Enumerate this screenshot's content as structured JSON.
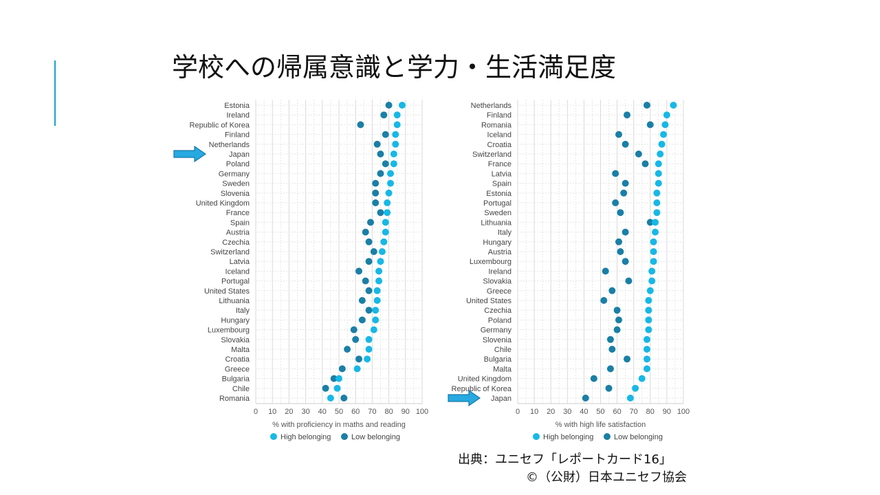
{
  "slide": {
    "title": "学校への帰属意識と学力・生活満足度",
    "source_line1": "出典：ユニセフ「レポートカード16」",
    "source_line2": "©（公財）日本ユニセフ協会",
    "accent_color": "#1aa3c9"
  },
  "chart_data": [
    {
      "type": "scatter",
      "title": "",
      "xlabel": "% with proficiency in maths and reading",
      "ylabel": "",
      "xlim": [
        0,
        100
      ],
      "xticks": [
        0,
        10,
        20,
        30,
        40,
        50,
        60,
        70,
        80,
        90,
        100
      ],
      "categories": [
        "Estonia",
        "Ireland",
        "Republic of Korea",
        "Finland",
        "Netherlands",
        "Japan",
        "Poland",
        "Germany",
        "Sweden",
        "Slovenia",
        "United Kingdom",
        "France",
        "Spain",
        "Austria",
        "Czechia",
        "Switzerland",
        "Latvia",
        "Iceland",
        "Portugal",
        "United States",
        "Lithuania",
        "Italy",
        "Hungary",
        "Luxembourg",
        "Slovakia",
        "Malta",
        "Croatia",
        "Greece",
        "Bulgaria",
        "Chile",
        "Romania"
      ],
      "highlight": "Japan",
      "series": [
        {
          "name": "High belonging",
          "color": "#17b8e6",
          "values": [
            88,
            85,
            85,
            84,
            84,
            83,
            83,
            81,
            81,
            80,
            79,
            79,
            78,
            78,
            77,
            76,
            75,
            74,
            74,
            73,
            73,
            72,
            72,
            71,
            68,
            68,
            67,
            61,
            50,
            49,
            45
          ]
        },
        {
          "name": "Low belonging",
          "color": "#1a7fa6",
          "values": [
            80,
            77,
            63,
            78,
            73,
            75,
            78,
            75,
            72,
            72,
            72,
            75,
            69,
            66,
            68,
            71,
            68,
            62,
            66,
            68,
            64,
            68,
            64,
            59,
            60,
            55,
            62,
            52,
            47,
            42,
            53
          ]
        }
      ],
      "legend": [
        "High belonging",
        "Low belonging"
      ]
    },
    {
      "type": "scatter",
      "title": "",
      "xlabel": "% with high life satisfaction",
      "ylabel": "",
      "xlim": [
        0,
        100
      ],
      "xticks": [
        0,
        10,
        20,
        30,
        40,
        50,
        60,
        70,
        80,
        90,
        100
      ],
      "categories": [
        "Netherlands",
        "Finland",
        "Romania",
        "Iceland",
        "Croatia",
        "Switzerland",
        "France",
        "Latvia",
        "Spain",
        "Estonia",
        "Portugal",
        "Sweden",
        "Lithuania",
        "Italy",
        "Hungary",
        "Austria",
        "Luxembourg",
        "Ireland",
        "Slovakia",
        "Greece",
        "United States",
        "Czechia",
        "Poland",
        "Germany",
        "Slovenia",
        "Chile",
        "Bulgaria",
        "Malta",
        "United Kingdom",
        "Republic of Korea",
        "Japan"
      ],
      "highlight": "Japan",
      "series": [
        {
          "name": "High belonging",
          "color": "#17b8e6",
          "values": [
            94,
            90,
            89,
            88,
            87,
            86,
            85,
            85,
            85,
            84,
            84,
            84,
            83,
            83,
            82,
            82,
            82,
            81,
            81,
            80,
            79,
            79,
            79,
            79,
            78,
            78,
            78,
            78,
            75,
            71,
            68
          ]
        },
        {
          "name": "Low belonging",
          "color": "#1a7fa6",
          "values": [
            78,
            66,
            80,
            61,
            65,
            73,
            77,
            59,
            65,
            64,
            59,
            62,
            80,
            65,
            61,
            62,
            65,
            53,
            67,
            57,
            52,
            60,
            61,
            60,
            56,
            57,
            66,
            56,
            46,
            55,
            41
          ]
        }
      ],
      "legend": [
        "High belonging",
        "Low belonging"
      ]
    }
  ]
}
